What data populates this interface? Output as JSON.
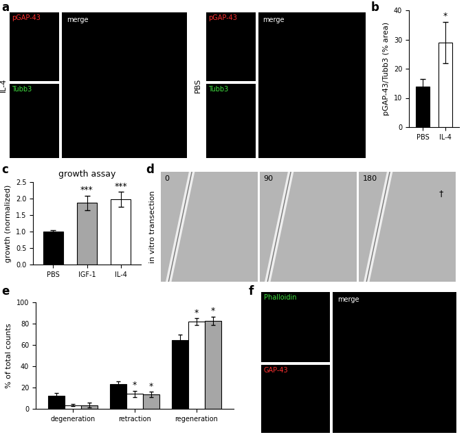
{
  "chart_data": [
    {
      "panel": "b",
      "type": "bar",
      "ylabel": "pGAP-43/Tubb3 (% area)",
      "categories": [
        "PBS",
        "IL-4"
      ],
      "values": [
        14,
        29
      ],
      "errors": [
        2.5,
        7
      ],
      "colors": [
        "#000000",
        "#ffffff"
      ],
      "significance": [
        null,
        "*"
      ],
      "ylim": [
        0,
        40
      ],
      "yticks": [
        0,
        10,
        20,
        30,
        40
      ]
    },
    {
      "panel": "c",
      "type": "bar",
      "title": "growth assay",
      "ylabel": "growth (normalized)",
      "categories": [
        "PBS",
        "IGF-1",
        "IL-4"
      ],
      "values": [
        1.0,
        1.87,
        1.98
      ],
      "errors": [
        0.05,
        0.22,
        0.22
      ],
      "colors": [
        "#000000",
        "#a6a6a6",
        "#ffffff"
      ],
      "significance": [
        null,
        "***",
        "***"
      ],
      "ylim": [
        0,
        2.5
      ],
      "yticks": [
        {
          "value": 0,
          "label": "0.0"
        },
        {
          "value": 0.5,
          "label": "0.5"
        },
        {
          "value": 1,
          "label": "1.0"
        },
        {
          "value": 1.5,
          "label": "1.5"
        },
        {
          "value": 2,
          "label": "2.0"
        },
        {
          "value": 2.5,
          "label": "2.5"
        }
      ]
    },
    {
      "panel": "e",
      "type": "bar",
      "ylabel": "% of total counts",
      "categories": [
        "degeneration",
        "retraction",
        "regeneration"
      ],
      "series": [
        {
          "color": "#000000",
          "values": [
            12,
            23.5,
            64.5
          ],
          "errors": [
            3,
            2.5,
            5
          ],
          "significance": [
            null,
            null,
            null
          ]
        },
        {
          "color": "#ffffff",
          "values": [
            3.5,
            14,
            82
          ],
          "errors": [
            1,
            3,
            3
          ],
          "significance": [
            null,
            "*",
            "*"
          ]
        },
        {
          "color": "#a6a6a6",
          "values": [
            3.5,
            13.5,
            82.5
          ],
          "errors": [
            2,
            2.5,
            4
          ],
          "significance": [
            null,
            "*",
            "*"
          ]
        }
      ],
      "ylim": [
        0,
        100
      ],
      "yticks": [
        0,
        20,
        40,
        60,
        80,
        100
      ]
    }
  ],
  "image_panels": {
    "a": {
      "label": "a",
      "groups": [
        {
          "condition": "IL-4",
          "channels": [
            "pGAP-43",
            "Tubb3",
            "merge"
          ]
        },
        {
          "condition": "PBS",
          "channels": [
            "pGAP-43",
            "Tubb3",
            "merge"
          ]
        }
      ]
    },
    "d": {
      "label": "d",
      "title": "in vitro transection",
      "frames": [
        "0",
        "90",
        "180"
      ],
      "symbol": "†"
    },
    "f": {
      "label": "f",
      "channels": [
        "Phalloidin",
        "GAP-43",
        "merge"
      ]
    }
  }
}
